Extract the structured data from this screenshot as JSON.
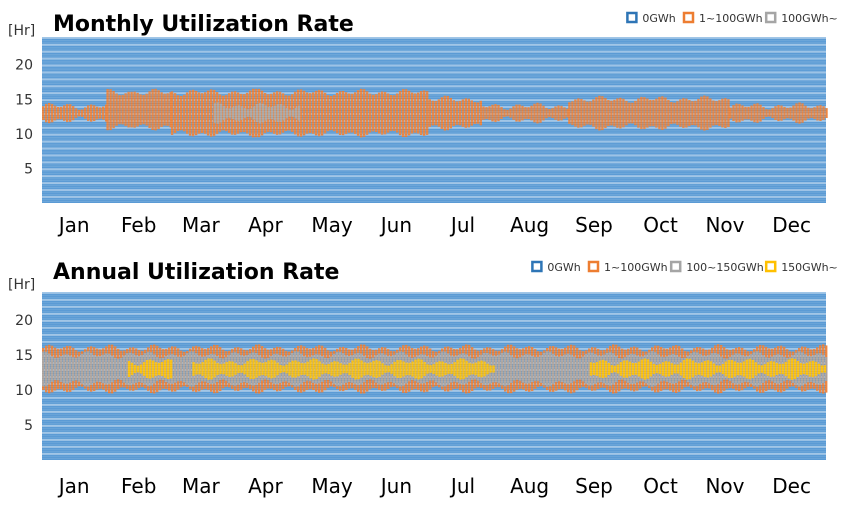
{
  "colors": {
    "0GWh": "#5b9bd5",
    "1~100GWh": "#ed7d31",
    "100GWh~": "#a5a5a5",
    "100~150GWh": "#a5a5a5",
    "150GWh~": "#ffc000"
  },
  "chart_data": [
    {
      "type": "heatmap",
      "title": "Monthly Utilization Rate",
      "ylabel": "[Hr]",
      "yticks": [
        5,
        10,
        15,
        20
      ],
      "ylim": [
        0,
        24
      ],
      "xlim": [
        0,
        365
      ],
      "x_tick_labels": [
        "Jan",
        "Feb",
        "Mar",
        "Apr",
        "May",
        "Jun",
        "Jul",
        "Aug",
        "Sep",
        "Oct",
        "Nov",
        "Dec"
      ],
      "x_tick_days": [
        15,
        45,
        74,
        104,
        135,
        165,
        196,
        227,
        257,
        288,
        318,
        349
      ],
      "legend": {
        "position": "top-right",
        "items": [
          {
            "label": "0GWh",
            "color": "#2e75b6"
          },
          {
            "label": "1~100GWh",
            "color": "#ed7d31"
          },
          {
            "label": "100GWh~",
            "color": "#a5a5a5"
          }
        ]
      },
      "background_category": "0GWh",
      "bands": [
        {
          "category": "1~100GWh",
          "x_from": 0,
          "x_to": 30,
          "hr_from": 12,
          "hr_to": 14
        },
        {
          "category": "1~100GWh",
          "x_from": 30,
          "x_to": 60,
          "hr_from": 11,
          "hr_to": 16
        },
        {
          "category": "1~100GWh",
          "x_from": 60,
          "x_to": 180,
          "hr_from": 10,
          "hr_to": 16
        },
        {
          "category": "1~100GWh",
          "x_from": 180,
          "x_to": 205,
          "hr_from": 11,
          "hr_to": 15
        },
        {
          "category": "1~100GWh",
          "x_from": 205,
          "x_to": 245,
          "hr_from": 12,
          "hr_to": 14
        },
        {
          "category": "1~100GWh",
          "x_from": 245,
          "x_to": 320,
          "hr_from": 11,
          "hr_to": 15
        },
        {
          "category": "1~100GWh",
          "x_from": 320,
          "x_to": 365,
          "hr_from": 12,
          "hr_to": 14
        },
        {
          "category": "100GWh~",
          "x_from": 80,
          "x_to": 120,
          "hr_from": 12,
          "hr_to": 14
        }
      ]
    },
    {
      "type": "heatmap",
      "title": "Annual Utilization Rate",
      "ylabel": "[Hr]",
      "yticks": [
        5,
        10,
        15,
        20
      ],
      "ylim": [
        0,
        24
      ],
      "xlim": [
        0,
        365
      ],
      "x_tick_labels": [
        "Jan",
        "Feb",
        "Mar",
        "Apr",
        "May",
        "Jun",
        "Jul",
        "Aug",
        "Sep",
        "Oct",
        "Nov",
        "Dec"
      ],
      "x_tick_days": [
        15,
        45,
        74,
        104,
        135,
        165,
        196,
        227,
        257,
        288,
        318,
        349
      ],
      "legend": {
        "position": "top-right",
        "items": [
          {
            "label": "0GWh",
            "color": "#2e75b6"
          },
          {
            "label": "1~100GWh",
            "color": "#ed7d31"
          },
          {
            "label": "100~150GWh",
            "color": "#a5a5a5"
          },
          {
            "label": "150GWh~",
            "color": "#ffc000"
          }
        ]
      },
      "background_category": "0GWh",
      "bands": [
        {
          "category": "1~100GWh",
          "x_from": 0,
          "x_to": 365,
          "hr_from": 10,
          "hr_to": 16
        },
        {
          "category": "100~150GWh",
          "x_from": 0,
          "x_to": 365,
          "hr_from": 11,
          "hr_to": 15
        },
        {
          "category": "150GWh~",
          "x_from": 40,
          "x_to": 60,
          "hr_from": 12,
          "hr_to": 14
        },
        {
          "category": "150GWh~",
          "x_from": 70,
          "x_to": 210,
          "hr_from": 12,
          "hr_to": 14
        },
        {
          "category": "150GWh~",
          "x_from": 255,
          "x_to": 365,
          "hr_from": 12,
          "hr_to": 14
        }
      ]
    }
  ]
}
